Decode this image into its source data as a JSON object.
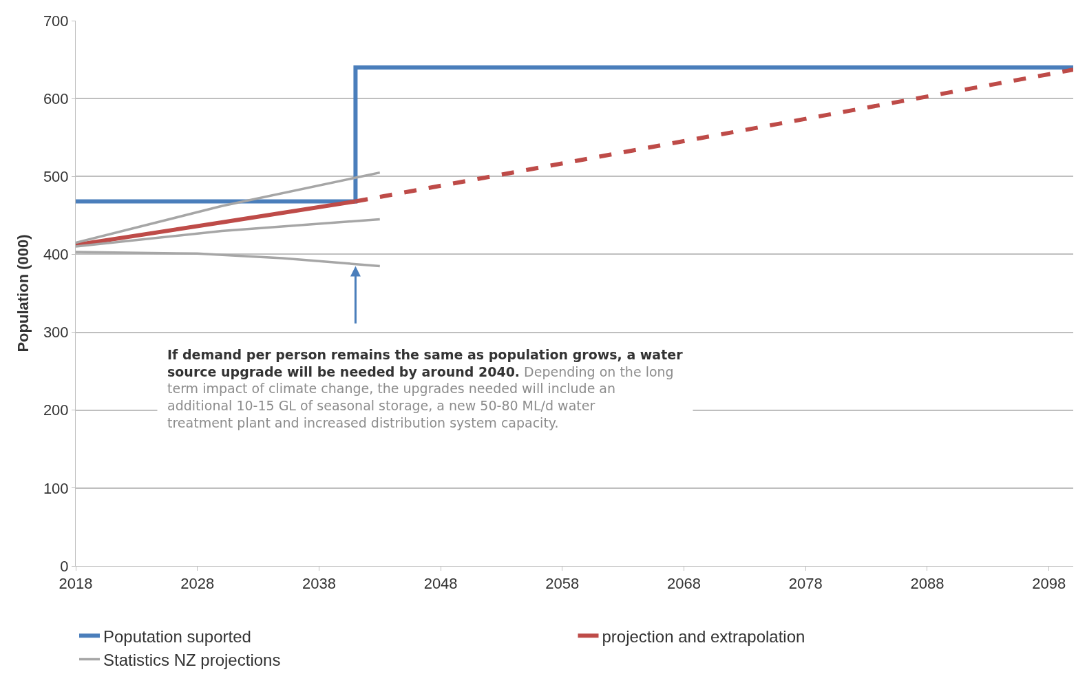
{
  "chart_data": {
    "type": "line",
    "ylabel": "Population (000)",
    "xlim": [
      2018,
      2100
    ],
    "xticks": [
      2018,
      2028,
      2038,
      2048,
      2058,
      2068,
      2078,
      2088,
      2098
    ],
    "ylim": [
      0,
      700
    ],
    "yticks": [
      0,
      100,
      200,
      300,
      400,
      500,
      600,
      700
    ],
    "grid": "y",
    "legend": "bottom",
    "marker": "none",
    "series": [
      {
        "name": "Poputation suported",
        "type": "step",
        "color": "#4a7ebb",
        "x": [
          2018,
          2041,
          2100
        ],
        "values": [
          468,
          640,
          640
        ],
        "line_style": "solid"
      },
      {
        "name": "projection and extrapolation",
        "color": "#be4b48",
        "x": [
          2018,
          2030,
          2041
        ],
        "values": [
          412,
          441,
          468
        ],
        "line_style": "solid"
      },
      {
        "color": "#be4b48",
        "x": [
          2041,
          2100
        ],
        "values": [
          468,
          637
        ],
        "line_style": "dashed"
      },
      {
        "name": "Statistics NZ projections",
        "color": "#a6a6a6",
        "x": [
          2018,
          2030,
          2043
        ],
        "values": [
          415,
          462,
          505
        ],
        "line_style": "solid"
      },
      {
        "color": "#a6a6a6",
        "x": [
          2018,
          2030,
          2043
        ],
        "values": [
          410,
          430,
          445
        ],
        "line_style": "solid"
      },
      {
        "color": "#a6a6a6",
        "x": [
          2018,
          2028,
          2035,
          2043
        ],
        "values": [
          403,
          401,
          395,
          385
        ],
        "line_style": "solid"
      }
    ],
    "annotations": [
      "If demand per person remains the same as population grows, a water source upgrade will be needed by around 2040.",
      "Depending on the long term impact of climate change, the upgrades needed will include an additional 10-15 GL of seasonal storage, a new 50-80 ML/d water treatment plant and increased distribution system capacity."
    ]
  }
}
